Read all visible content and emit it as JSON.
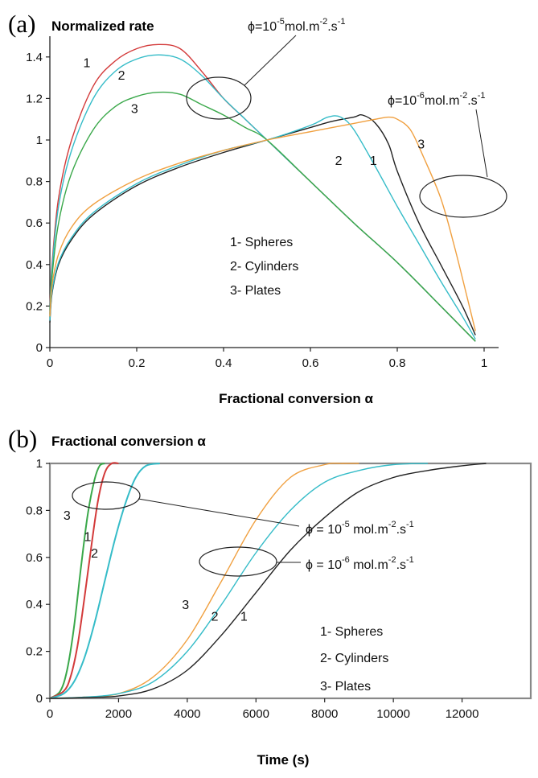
{
  "chart_data": [
    {
      "type": "line",
      "panel_label": "(a)",
      "title": "Normalized rate",
      "xlabel": "Fractional conversion α",
      "ylabel": "",
      "xlim": [
        0,
        1
      ],
      "ylim": [
        0,
        1.5
      ],
      "xticks": [
        "0",
        "0.2",
        "0.4",
        "0.6",
        "0.8",
        "1"
      ],
      "yticks": [
        "0",
        "0.2",
        "0.4",
        "0.6",
        "0.8",
        "1",
        "1.2",
        "1.4"
      ],
      "grid": false,
      "annotations": {
        "phi_high": {
          "base": "ϕ=10",
          "exp": "-5",
          "units": "mol.m",
          "units_exp": "-2",
          "units2": ".s",
          "units2_exp": "-1"
        },
        "phi_low": {
          "base": "ϕ=10",
          "exp": "-6",
          "units": "mol.m",
          "units_exp": "-2",
          "units2": ".s",
          "units2_exp": "-1"
        }
      },
      "legend": [
        "1-  Spheres",
        "2- Cylinders",
        "3- Plates"
      ],
      "series": [
        {
          "label": "1",
          "group": "phi_high",
          "color": "#d33a3a",
          "x": [
            0,
            0.005,
            0.02,
            0.05,
            0.1,
            0.15,
            0.2,
            0.25,
            0.3,
            0.35,
            0.4,
            0.45,
            0.5,
            0.6,
            0.7,
            0.8,
            0.9,
            0.98
          ],
          "y": [
            0.2,
            0.4,
            0.72,
            1.0,
            1.26,
            1.38,
            1.44,
            1.46,
            1.44,
            1.33,
            1.2,
            1.1,
            1.0,
            0.8,
            0.6,
            0.41,
            0.2,
            0.03
          ]
        },
        {
          "label": "2",
          "group": "phi_high",
          "color": "#35bcc8",
          "x": [
            0,
            0.005,
            0.02,
            0.05,
            0.1,
            0.15,
            0.2,
            0.25,
            0.3,
            0.35,
            0.4,
            0.45,
            0.5,
            0.6,
            0.7,
            0.8,
            0.9,
            0.98
          ],
          "y": [
            0.18,
            0.38,
            0.68,
            0.95,
            1.2,
            1.33,
            1.39,
            1.41,
            1.39,
            1.31,
            1.2,
            1.1,
            1.0,
            0.8,
            0.6,
            0.41,
            0.2,
            0.03
          ]
        },
        {
          "label": "3",
          "group": "phi_high",
          "color": "#3aa84a",
          "x": [
            0,
            0.005,
            0.02,
            0.05,
            0.1,
            0.15,
            0.2,
            0.25,
            0.3,
            0.35,
            0.4,
            0.45,
            0.5,
            0.6,
            0.7,
            0.8,
            0.9,
            0.98
          ],
          "y": [
            0.16,
            0.34,
            0.6,
            0.84,
            1.05,
            1.16,
            1.21,
            1.23,
            1.22,
            1.17,
            1.12,
            1.06,
            1.0,
            0.8,
            0.6,
            0.41,
            0.2,
            0.03
          ]
        },
        {
          "label": "1",
          "group": "phi_low",
          "color": "#222222",
          "x": [
            0,
            0.005,
            0.02,
            0.05,
            0.1,
            0.2,
            0.3,
            0.4,
            0.5,
            0.6,
            0.65,
            0.7,
            0.72,
            0.75,
            0.78,
            0.8,
            0.85,
            0.9,
            0.95,
            0.98
          ],
          "y": [
            0.12,
            0.26,
            0.4,
            0.52,
            0.64,
            0.78,
            0.87,
            0.94,
            1.0,
            1.06,
            1.09,
            1.11,
            1.12,
            1.08,
            0.98,
            0.85,
            0.6,
            0.4,
            0.2,
            0.06
          ]
        },
        {
          "label": "2",
          "group": "phi_low",
          "color": "#35bcc8",
          "x": [
            0,
            0.005,
            0.02,
            0.05,
            0.1,
            0.2,
            0.3,
            0.4,
            0.5,
            0.6,
            0.64,
            0.67,
            0.7,
            0.75,
            0.8,
            0.85,
            0.9,
            0.95,
            0.98
          ],
          "y": [
            0.13,
            0.27,
            0.41,
            0.53,
            0.65,
            0.79,
            0.88,
            0.95,
            1.0,
            1.07,
            1.11,
            1.11,
            1.05,
            0.87,
            0.68,
            0.5,
            0.32,
            0.15,
            0.04
          ]
        },
        {
          "label": "3",
          "group": "phi_low",
          "color": "#f0a040",
          "x": [
            0,
            0.005,
            0.02,
            0.05,
            0.1,
            0.2,
            0.3,
            0.4,
            0.5,
            0.6,
            0.7,
            0.75,
            0.78,
            0.8,
            0.83,
            0.86,
            0.9,
            0.93,
            0.96,
            0.98
          ],
          "y": [
            0.15,
            0.3,
            0.45,
            0.58,
            0.69,
            0.81,
            0.89,
            0.95,
            1.0,
            1.04,
            1.08,
            1.1,
            1.11,
            1.1,
            1.05,
            0.92,
            0.72,
            0.5,
            0.25,
            0.08
          ]
        }
      ],
      "curve_labels": [
        {
          "text": "1",
          "x": 0.085,
          "y": 1.35
        },
        {
          "text": "2",
          "x": 0.165,
          "y": 1.29
        },
        {
          "text": "3",
          "x": 0.195,
          "y": 1.13
        },
        {
          "text": "2",
          "x": 0.665,
          "y": 0.88
        },
        {
          "text": "1",
          "x": 0.745,
          "y": 0.88
        },
        {
          "text": "3",
          "x": 0.855,
          "y": 0.96
        }
      ]
    },
    {
      "type": "line",
      "panel_label": "(b)",
      "title": "Fractional conversion α",
      "xlabel": "Time (s)",
      "ylabel": "",
      "xlim": [
        0,
        14000
      ],
      "ylim": [
        0,
        1
      ],
      "xticks": [
        "0",
        "2000",
        "4000",
        "6000",
        "8000",
        "10000",
        "12000"
      ],
      "yticks": [
        "0",
        "0.2",
        "0.4",
        "0.6",
        "0.8",
        "1"
      ],
      "grid": false,
      "annotations": {
        "phi_high": {
          "base": "ϕ = 10",
          "exp": "-5",
          "units": " mol.m",
          "units_exp": "-2",
          "units2": ".s",
          "units2_exp": "-1"
        },
        "phi_low": {
          "base": "ϕ = 10",
          "exp": "-6",
          "units": " mol.m",
          "units_exp": "-2",
          "units2": ".s",
          "units2_exp": "-1"
        }
      },
      "legend": [
        "1-   Spheres",
        "2- Cylinders",
        "3- Plates"
      ],
      "series": [
        {
          "label": "3",
          "group": "phi_high",
          "color": "#3aa84a",
          "x": [
            0,
            300,
            500,
            700,
            900,
            1100,
            1300,
            1450,
            1600
          ],
          "y": [
            0,
            0.03,
            0.12,
            0.3,
            0.55,
            0.78,
            0.93,
            0.99,
            1.0
          ]
        },
        {
          "label": "1",
          "group": "phi_high",
          "color": "#d33a3a",
          "x": [
            0,
            400,
            600,
            800,
            1000,
            1200,
            1400,
            1600,
            1800,
            2000
          ],
          "y": [
            0,
            0.03,
            0.09,
            0.22,
            0.42,
            0.64,
            0.84,
            0.96,
            1.0,
            1.0
          ]
        },
        {
          "label": "2",
          "group": "phi_high",
          "color": "#35bcc8",
          "x": [
            0,
            400,
            700,
            1000,
            1300,
            1600,
            1900,
            2200,
            2500,
            2800,
            3200
          ],
          "y": [
            0,
            0.02,
            0.07,
            0.17,
            0.32,
            0.5,
            0.68,
            0.83,
            0.94,
            0.99,
            1.0
          ]
        },
        {
          "label": "3",
          "group": "phi_low",
          "color": "#f0a040",
          "x": [
            0,
            1000,
            2000,
            3000,
            4000,
            5000,
            6000,
            7000,
            8000,
            8500,
            9000
          ],
          "y": [
            0,
            0.005,
            0.02,
            0.09,
            0.25,
            0.5,
            0.76,
            0.94,
            0.995,
            1.0,
            1.0
          ]
        },
        {
          "label": "2",
          "group": "phi_low",
          "color": "#35bcc8",
          "x": [
            0,
            1000,
            2000,
            3000,
            4000,
            5000,
            6000,
            7000,
            8000,
            9000,
            10000,
            11000
          ],
          "y": [
            0,
            0.005,
            0.02,
            0.07,
            0.2,
            0.4,
            0.62,
            0.8,
            0.92,
            0.97,
            0.995,
            1.0
          ]
        },
        {
          "label": "1",
          "group": "phi_low",
          "color": "#222222",
          "x": [
            0,
            1000,
            2000,
            3000,
            4000,
            5000,
            6000,
            7000,
            8000,
            9000,
            10000,
            11000,
            12000,
            12700
          ],
          "y": [
            0,
            0.003,
            0.01,
            0.04,
            0.12,
            0.27,
            0.45,
            0.63,
            0.77,
            0.88,
            0.94,
            0.97,
            0.99,
            1.0
          ]
        }
      ],
      "curve_labels": [
        {
          "text": "3",
          "x": 500,
          "y": 0.76
        },
        {
          "text": "1",
          "x": 1100,
          "y": 0.67
        },
        {
          "text": "2",
          "x": 1300,
          "y": 0.6
        },
        {
          "text": "3",
          "x": 3950,
          "y": 0.38
        },
        {
          "text": "2",
          "x": 4800,
          "y": 0.33
        },
        {
          "text": "1",
          "x": 5650,
          "y": 0.33
        }
      ]
    }
  ]
}
